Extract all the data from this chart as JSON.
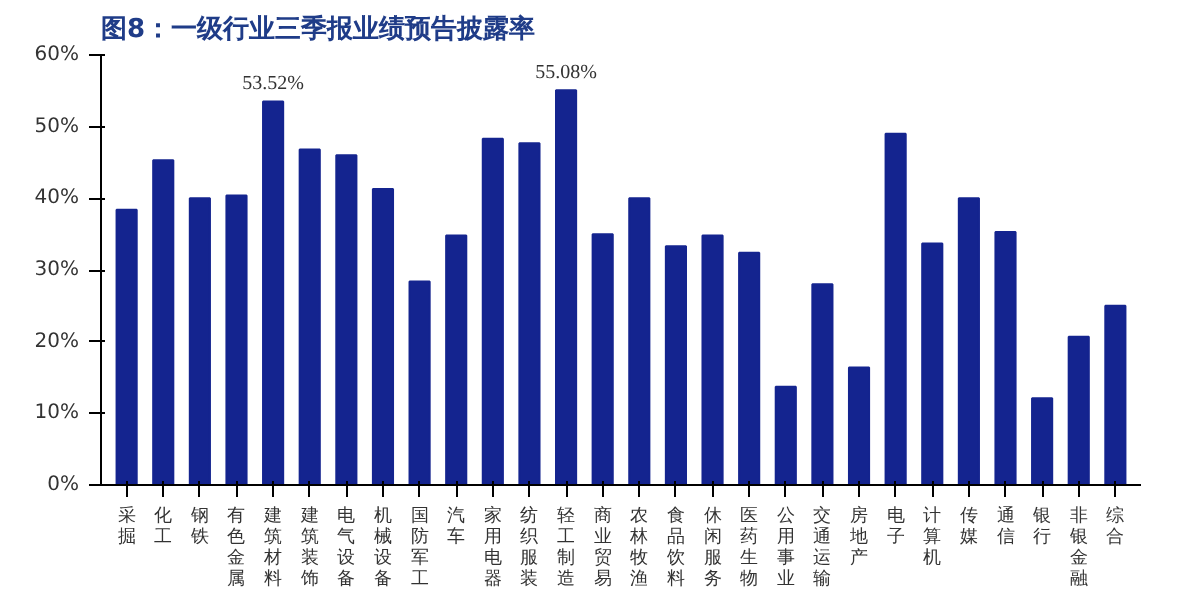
{
  "chart_data": {
    "type": "bar",
    "title": "图8：一级行业三季报业绩预告披露率",
    "categories": [
      "采掘",
      "化工",
      "钢铁",
      "有色金属",
      "建筑材料",
      "建筑装饰",
      "电气设备",
      "机械设备",
      "国防军工",
      "汽车",
      "家用电器",
      "纺织服装",
      "轻工制造",
      "商业贸易",
      "农林牧渔",
      "食品饮料",
      "休闲服务",
      "医药生物",
      "公用事业",
      "交通运输",
      "房地产",
      "电子",
      "计算机",
      "传媒",
      "通信",
      "银行",
      "非银金融",
      "综合"
    ],
    "values": [
      38.4,
      45.3,
      40,
      40.4,
      53.52,
      46.8,
      46,
      41.3,
      28.4,
      34.8,
      48.3,
      47.7,
      55.08,
      35,
      40,
      33.3,
      34.8,
      32.4,
      13.7,
      28,
      16.4,
      49,
      33.7,
      40,
      35.3,
      12.1,
      20.7,
      25
    ],
    "value_labels": [
      null,
      null,
      null,
      null,
      "53.52%",
      null,
      null,
      null,
      null,
      null,
      null,
      null,
      "55.08%",
      null,
      null,
      null,
      null,
      null,
      null,
      null,
      null,
      null,
      null,
      null,
      null,
      null,
      null,
      null
    ],
    "color": "#14248f",
    "ylim": [
      0,
      60
    ],
    "yticks": [
      {
        "value": 0,
        "label": "0%"
      },
      {
        "value": 10,
        "label": "10%"
      },
      {
        "value": 20,
        "label": "20%"
      },
      {
        "value": 30,
        "label": "30%"
      },
      {
        "value": 40,
        "label": "40%"
      },
      {
        "value": 50,
        "label": "50%"
      },
      {
        "value": 60,
        "label": "60%"
      }
    ],
    "grid": false
  }
}
